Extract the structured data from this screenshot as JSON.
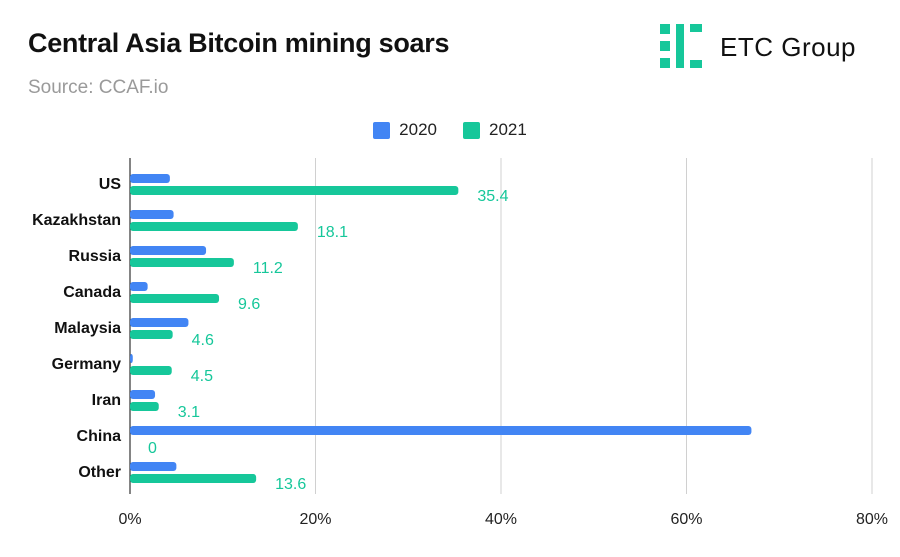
{
  "header": {
    "title": "Central Asia Bitcoin mining soars",
    "source": "Source: CCAF.io"
  },
  "brand": {
    "name": "ETC Group",
    "color": "#16c79a"
  },
  "chart_data": {
    "type": "bar",
    "orientation": "horizontal",
    "title": "Central Asia Bitcoin mining soars",
    "subtitle": "Source: CCAF.io",
    "categories": [
      "US",
      "Kazakhstan",
      "Russia",
      "Canada",
      "Malaysia",
      "Germany",
      "Iran",
      "China",
      "Other"
    ],
    "series": [
      {
        "name": "2020",
        "color": "#4285f4",
        "values": [
          4.3,
          4.7,
          8.2,
          1.9,
          6.3,
          0.3,
          2.7,
          67,
          5.0
        ],
        "show_labels": false
      },
      {
        "name": "2021",
        "color": "#16c79a",
        "values": [
          35.4,
          18.1,
          11.2,
          9.6,
          4.6,
          4.5,
          3.1,
          0,
          13.6
        ],
        "labels": [
          "35.4",
          "18.1",
          "11.2",
          "9.6",
          "4.6",
          "4.5",
          "3.1",
          "0",
          "13.6"
        ],
        "show_labels": true
      }
    ],
    "x_ticks": [
      "0%",
      "20%",
      "40%",
      "60%",
      "80%"
    ],
    "x_tick_values": [
      0,
      20,
      40,
      60,
      80
    ],
    "xlim": [
      0,
      80
    ],
    "grid": true,
    "legend_position": "top"
  }
}
